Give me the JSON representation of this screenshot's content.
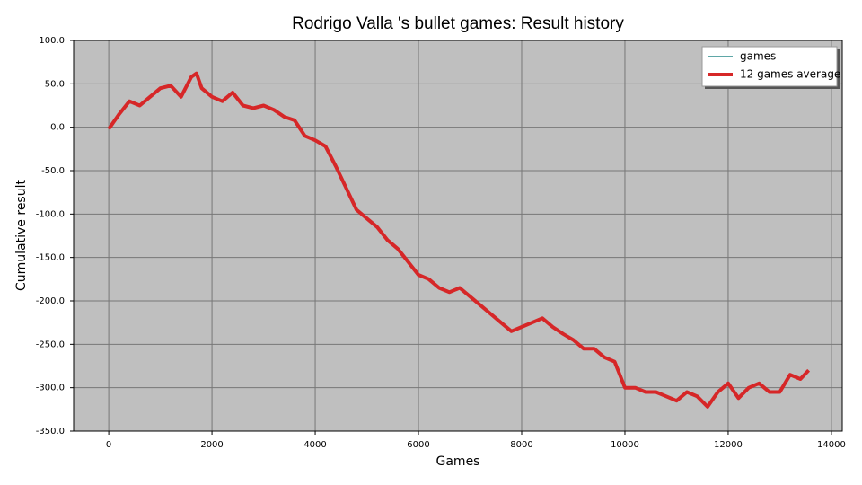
{
  "chart_data": {
    "type": "line",
    "title": "Rodrigo Valla 's bullet games: Result history",
    "x_label": "Games",
    "y_label": "Cumulative result",
    "x": [
      0,
      200,
      400,
      600,
      800,
      1000,
      1200,
      1400,
      1600,
      1700,
      1800,
      2000,
      2200,
      2400,
      2600,
      2800,
      3000,
      3200,
      3400,
      3600,
      3800,
      4000,
      4200,
      4400,
      4600,
      4800,
      5000,
      5200,
      5400,
      5600,
      5800,
      6000,
      6200,
      6400,
      6600,
      6800,
      7000,
      7200,
      7400,
      7600,
      7800,
      8000,
      8200,
      8400,
      8600,
      8800,
      9000,
      9200,
      9400,
      9600,
      9800,
      10000,
      10200,
      10400,
      10600,
      10800,
      11000,
      11200,
      11400,
      11600,
      11800,
      12000,
      12200,
      12400,
      12600,
      12800,
      13000,
      13200,
      13400,
      13560
    ],
    "series": [
      {
        "name": "games",
        "color": "#2a8a8a",
        "values": [
          -2,
          15,
          30,
          25,
          35,
          45,
          48,
          35,
          58,
          62,
          45,
          35,
          30,
          40,
          25,
          22,
          25,
          20,
          12,
          8,
          -10,
          -15,
          -22,
          -45,
          -70,
          -95,
          -105,
          -115,
          -130,
          -140,
          -155,
          -170,
          -175,
          -185,
          -190,
          -185,
          -195,
          -205,
          -215,
          -225,
          -235,
          -230,
          -225,
          -220,
          -230,
          -238,
          -245,
          -255,
          -255,
          -265,
          -270,
          -300,
          -300,
          -305,
          -305,
          -310,
          -315,
          -305,
          -310,
          -322,
          -305,
          -295,
          -312,
          -300,
          -295,
          -305,
          -305,
          -285,
          -290,
          -280
        ]
      },
      {
        "name": "12 games average",
        "color": "#d62728",
        "values": [
          -2,
          15,
          30,
          25,
          35,
          45,
          48,
          35,
          58,
          62,
          45,
          35,
          30,
          40,
          25,
          22,
          25,
          20,
          12,
          8,
          -10,
          -15,
          -22,
          -45,
          -70,
          -95,
          -105,
          -115,
          -130,
          -140,
          -155,
          -170,
          -175,
          -185,
          -190,
          -185,
          -195,
          -205,
          -215,
          -225,
          -235,
          -230,
          -225,
          -220,
          -230,
          -238,
          -245,
          -255,
          -255,
          -265,
          -270,
          -300,
          -300,
          -305,
          -305,
          -310,
          -315,
          -305,
          -310,
          -322,
          -305,
          -295,
          -312,
          -300,
          -295,
          -305,
          -305,
          -285,
          -290,
          -280
        ]
      }
    ],
    "xlim": [
      -680,
      14210
    ],
    "ylim": [
      -350,
      100
    ],
    "xticks": [
      0,
      2000,
      4000,
      6000,
      8000,
      10000,
      12000,
      14000
    ],
    "yticks": [
      {
        "value": 100,
        "label": "100.0"
      },
      {
        "value": 50,
        "label": "50.0"
      },
      {
        "value": 0,
        "label": "0.0"
      },
      {
        "value": -50,
        "label": "-50.0"
      },
      {
        "value": -100,
        "label": "-100.0"
      },
      {
        "value": -150,
        "label": "-150.0"
      },
      {
        "value": -200,
        "label": "-200.0"
      },
      {
        "value": -250,
        "label": "-250.0"
      },
      {
        "value": -300,
        "label": "-300.0"
      },
      {
        "value": -350,
        "label": "-350.0"
      }
    ],
    "grid": true,
    "legend": "upper right"
  }
}
